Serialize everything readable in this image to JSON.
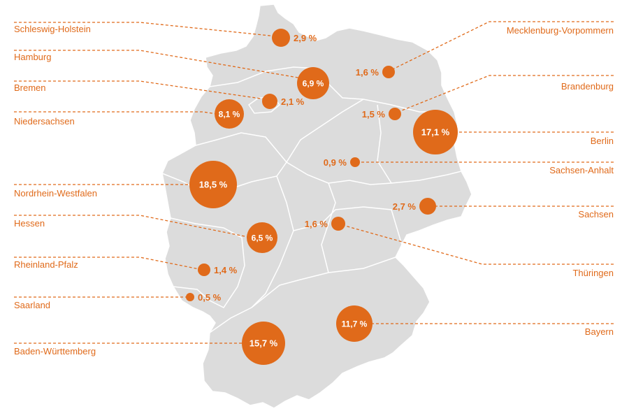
{
  "colors": {
    "accent": "#e06a1a",
    "map_fill": "#dcdcdc",
    "border": "#ffffff",
    "background": "#ffffff"
  },
  "regions": [
    {
      "name": "Schleswig-Holstein",
      "value": "2,9 %",
      "share": 2.9
    },
    {
      "name": "Hamburg",
      "value": "6,9 %",
      "share": 6.9
    },
    {
      "name": "Bremen",
      "value": "2,1 %",
      "share": 2.1
    },
    {
      "name": "Niedersachsen",
      "value": "8,1 %",
      "share": 8.1
    },
    {
      "name": "Nordrhein-Westfalen",
      "value": "18,5 %",
      "share": 18.5
    },
    {
      "name": "Hessen",
      "value": "6,5 %",
      "share": 6.5
    },
    {
      "name": "Rheinland-Pfalz",
      "value": "1,4 %",
      "share": 1.4
    },
    {
      "name": "Saarland",
      "value": "0,5 %",
      "share": 0.5
    },
    {
      "name": "Baden-Württemberg",
      "value": "15,7 %",
      "share": 15.7
    },
    {
      "name": "Mecklenburg-Vorpommern",
      "value": "1,6 %",
      "share": 1.6
    },
    {
      "name": "Brandenburg",
      "value": "1,5 %",
      "share": 1.5
    },
    {
      "name": "Berlin",
      "value": "17,1 %",
      "share": 17.1
    },
    {
      "name": "Sachsen-Anhalt",
      "value": "0,9 %",
      "share": 0.9
    },
    {
      "name": "Sachsen",
      "value": "2,7 %",
      "share": 2.7
    },
    {
      "name": "Thüringen",
      "value": "1,6 %",
      "share": 1.6
    },
    {
      "name": "Bayern",
      "value": "11,7 %",
      "share": 11.7
    }
  ]
}
